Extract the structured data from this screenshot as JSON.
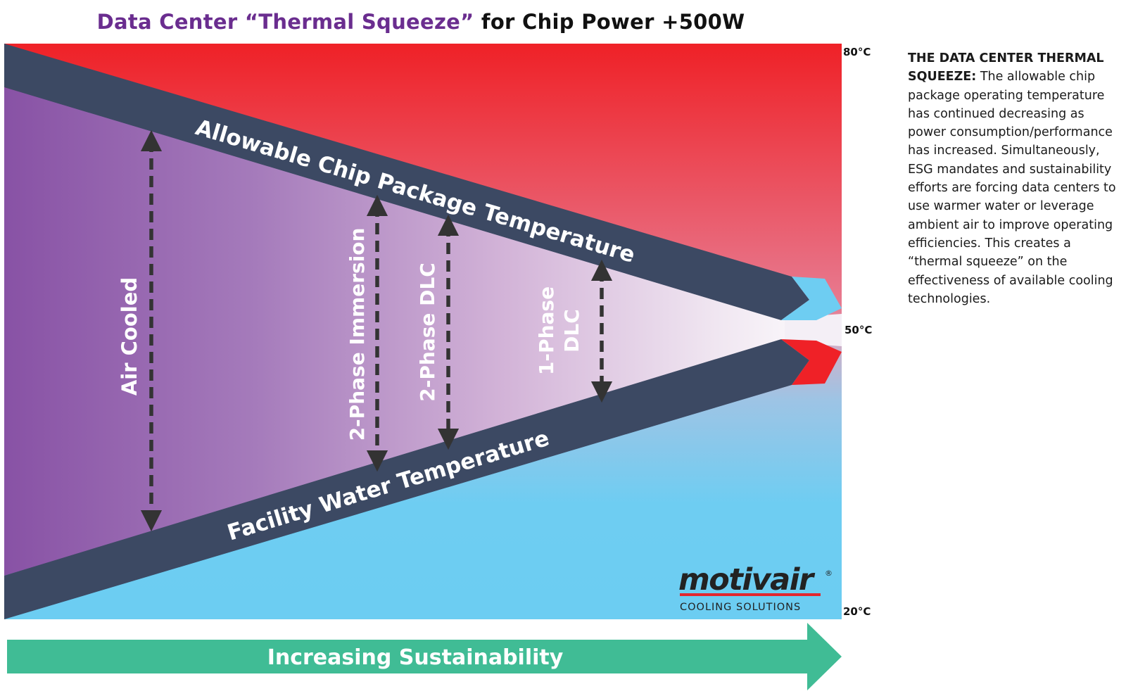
{
  "title": {
    "part1": "Data Center “Thermal Squeeze”",
    "part2": " for Chip Power +500W"
  },
  "scale": {
    "top": "80°C",
    "middle": "50°C",
    "bottom": "20°C"
  },
  "bands": {
    "upper": "Allowable Chip Package Temperature",
    "lower": "Facility Water Temperature"
  },
  "technologies": [
    {
      "label": "Air Cooled"
    },
    {
      "label": "2-Phase Immersion"
    },
    {
      "label": "2-Phase DLC"
    },
    {
      "line1": "1-Phase",
      "line2": "DLC"
    }
  ],
  "bottom_arrow": "Increasing Sustainability",
  "brand": {
    "name": "motivair",
    "registered": "®",
    "tagline": "COOLING SOLUTIONS"
  },
  "side_text": {
    "heading": "THE DATA CENTER THERMAL SQUEEZE:",
    "body": " The allowable chip package operating temperature has continued decreasing as power consumption/performance has increased. Simultaneously, ESG mandates and sustainability efforts are forcing data centers to use warmer water or leverage ambient air to improve operating efficiencies. This creates a “thermal squeeze” on the effectiveness of available cooling technologies."
  },
  "colors": {
    "hot": "#ef2127",
    "cold": "#6ecdf2",
    "purple": "#8a53a8",
    "band": "#3c4963",
    "arrow_dark": "#333333",
    "sustainability_green": "#40bc95",
    "brand_red": "#e3262d"
  }
}
